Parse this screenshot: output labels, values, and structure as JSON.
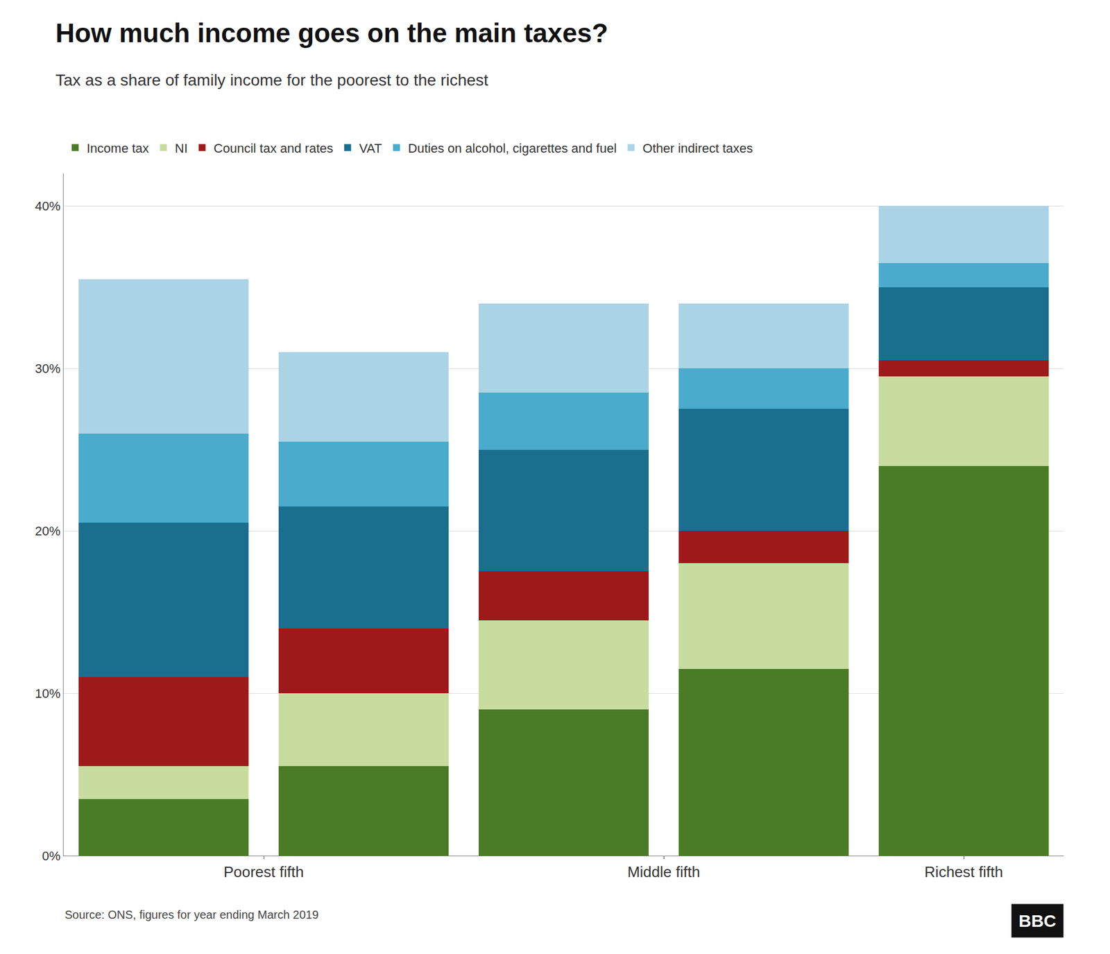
{
  "chart_data": {
    "type": "bar",
    "stacked": true,
    "title": "How much income goes on the main taxes?",
    "subtitle": "Tax as a share of family income for the poorest to the richest",
    "source": "Source: ONS, figures for year ending March 2019",
    "logo": "BBC",
    "categories": [
      "Poorest fifth",
      null,
      "Middle fifth",
      null,
      "Richest fifth"
    ],
    "series": [
      {
        "name": "Income tax",
        "color": "#4a7c25",
        "values": [
          3.5,
          5.5,
          9.0,
          11.5,
          24.0
        ]
      },
      {
        "name": "NI",
        "color": "#c8dca0",
        "values": [
          2.0,
          4.5,
          5.5,
          6.5,
          5.5
        ]
      },
      {
        "name": "Council tax and rates",
        "color": "#9e1a1a",
        "values": [
          5.5,
          4.0,
          3.0,
          2.0,
          1.0
        ]
      },
      {
        "name": "VAT",
        "color": "#1a6e8e",
        "values": [
          9.5,
          7.5,
          7.5,
          7.5,
          4.5
        ]
      },
      {
        "name": "Duties on alcohol, cigarettes and fuel",
        "color": "#4aabcc",
        "values": [
          5.5,
          4.0,
          3.5,
          2.5,
          1.5
        ]
      },
      {
        "name": "Other indirect taxes",
        "color": "#aad4e5",
        "values": [
          9.5,
          5.5,
          5.5,
          4.0,
          3.5
        ]
      }
    ],
    "ylim": [
      0,
      42
    ],
    "yticks": [
      {
        "value": 0,
        "label": "0%"
      },
      {
        "value": 10,
        "label": "10%"
      },
      {
        "value": 20,
        "label": "20%"
      },
      {
        "value": 30,
        "label": "30%"
      },
      {
        "value": 40,
        "label": "40%"
      }
    ],
    "grid": true,
    "legend": "top"
  }
}
